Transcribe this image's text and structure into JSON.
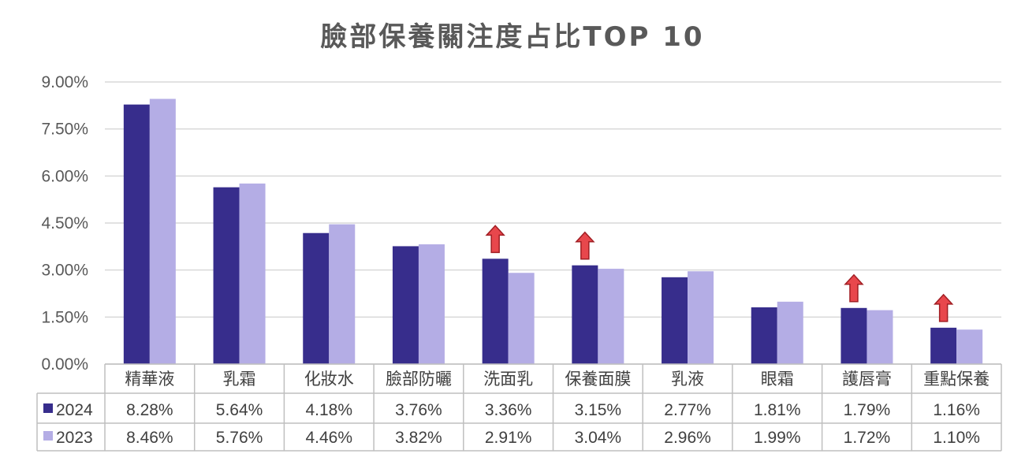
{
  "chart_data": {
    "type": "bar",
    "title": "臉部保養關注度占比TOP 10",
    "categories": [
      "精華液",
      "乳霜",
      "化妝水",
      "臉部防曬",
      "洗面乳",
      "保養面膜",
      "乳液",
      "眼霜",
      "護唇膏",
      "重點保養"
    ],
    "series": [
      {
        "name": "2024",
        "color": "#372D8C",
        "values": [
          8.28,
          5.64,
          4.18,
          3.76,
          3.36,
          3.15,
          2.77,
          1.81,
          1.79,
          1.16
        ],
        "labels": [
          "8.28%",
          "5.64%",
          "4.18%",
          "3.76%",
          "3.36%",
          "3.15%",
          "2.77%",
          "1.81%",
          "1.79%",
          "1.16%"
        ]
      },
      {
        "name": "2023",
        "color": "#B4ADE5",
        "values": [
          8.46,
          5.76,
          4.46,
          3.82,
          2.91,
          3.04,
          2.96,
          1.99,
          1.72,
          1.1
        ],
        "labels": [
          "8.46%",
          "5.76%",
          "4.46%",
          "3.82%",
          "2.91%",
          "3.04%",
          "2.96%",
          "1.99%",
          "1.72%",
          "1.10%"
        ]
      }
    ],
    "yticks": [
      "0.00%",
      "1.50%",
      "3.00%",
      "4.50%",
      "6.00%",
      "7.50%",
      "9.00%"
    ],
    "ylim": [
      0,
      9
    ],
    "ytick_step": 1.5,
    "grid": true,
    "legend": "data-table",
    "up_arrows": [
      "洗面乳",
      "保養面膜",
      "護唇膏",
      "重點保養"
    ],
    "arrow_color": "#E8474C"
  }
}
